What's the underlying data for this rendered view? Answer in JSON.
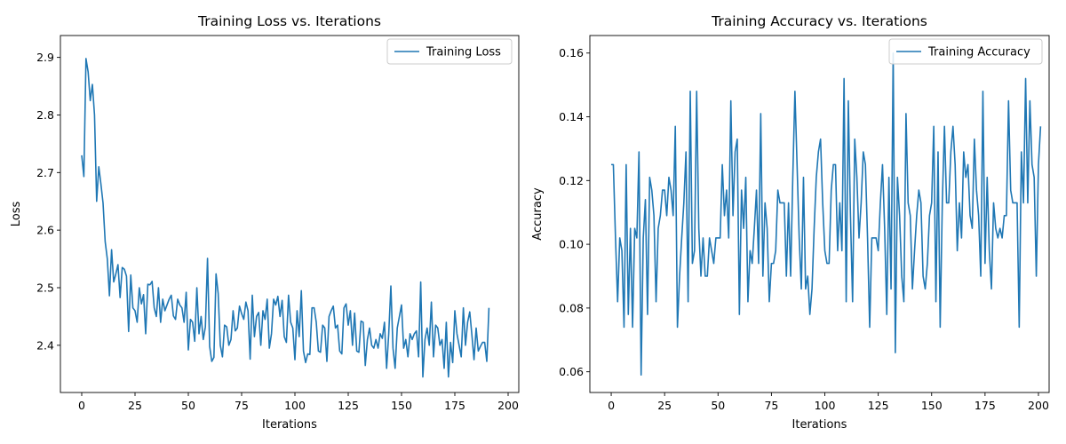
{
  "chart_data": [
    {
      "type": "line",
      "title": "Training Loss vs. Iterations",
      "xlabel": "Iterations",
      "ylabel": "Loss",
      "xlim": [
        -10,
        205
      ],
      "ylim": [
        2.318,
        2.938
      ],
      "xticks": [
        0,
        25,
        50,
        75,
        100,
        125,
        150,
        175,
        200
      ],
      "yticks": [
        2.4,
        2.5,
        2.6,
        2.7,
        2.8,
        2.9
      ],
      "ytick_labels": [
        "2.4",
        "2.5",
        "2.6",
        "2.7",
        "2.8",
        "2.9"
      ],
      "legend": "top-right",
      "grid": false,
      "series": [
        {
          "name": "Training Loss",
          "color": "#1f77b4",
          "x_start": 0,
          "x_step": 1,
          "values": [
            2.73,
            2.693,
            2.898,
            2.875,
            2.825,
            2.853,
            2.8,
            2.65,
            2.71,
            2.68,
            2.647,
            2.58,
            2.55,
            2.486,
            2.566,
            2.51,
            2.524,
            2.54,
            2.483,
            2.535,
            2.532,
            2.52,
            2.424,
            2.522,
            2.465,
            2.46,
            2.44,
            2.5,
            2.472,
            2.488,
            2.42,
            2.506,
            2.505,
            2.511,
            2.465,
            2.45,
            2.5,
            2.44,
            2.48,
            2.46,
            2.47,
            2.48,
            2.487,
            2.451,
            2.445,
            2.48,
            2.47,
            2.465,
            2.44,
            2.492,
            2.392,
            2.445,
            2.44,
            2.407,
            2.5,
            2.42,
            2.45,
            2.41,
            2.432,
            2.551,
            2.398,
            2.372,
            2.379,
            2.524,
            2.49,
            2.4,
            2.38,
            2.435,
            2.432,
            2.4,
            2.41,
            2.46,
            2.425,
            2.43,
            2.468,
            2.455,
            2.445,
            2.475,
            2.46,
            2.376,
            2.487,
            2.415,
            2.45,
            2.457,
            2.4,
            2.46,
            2.445,
            2.48,
            2.395,
            2.42,
            2.48,
            2.47,
            2.485,
            2.45,
            2.478,
            2.415,
            2.405,
            2.487,
            2.44,
            2.43,
            2.375,
            2.46,
            2.415,
            2.495,
            2.39,
            2.37,
            2.385,
            2.384,
            2.465,
            2.465,
            2.44,
            2.39,
            2.388,
            2.435,
            2.43,
            2.372,
            2.45,
            2.46,
            2.468,
            2.43,
            2.435,
            2.39,
            2.385,
            2.465,
            2.472,
            2.435,
            2.46,
            2.4,
            2.456,
            2.39,
            2.388,
            2.442,
            2.44,
            2.365,
            2.41,
            2.43,
            2.4,
            2.395,
            2.41,
            2.395,
            2.42,
            2.412,
            2.44,
            2.36,
            2.42,
            2.503,
            2.395,
            2.36,
            2.43,
            2.45,
            2.47,
            2.395,
            2.41,
            2.38,
            2.42,
            2.41,
            2.42,
            2.425,
            2.38,
            2.51,
            2.345,
            2.41,
            2.43,
            2.4,
            2.475,
            2.38,
            2.435,
            2.43,
            2.4,
            2.41,
            2.36,
            2.44,
            2.345,
            2.405,
            2.37,
            2.46,
            2.42,
            2.4,
            2.38,
            2.465,
            2.4,
            2.44,
            2.458,
            2.418,
            2.375,
            2.43,
            2.39,
            2.398,
            2.405,
            2.405,
            2.372,
            2.465
          ]
        }
      ]
    },
    {
      "type": "line",
      "title": "Training Accuracy vs. Iterations",
      "xlabel": "Iterations",
      "ylabel": "Accuracy",
      "xlim": [
        -10,
        205
      ],
      "ylim": [
        0.0535,
        0.1655
      ],
      "xticks": [
        0,
        25,
        50,
        75,
        100,
        125,
        150,
        175,
        200
      ],
      "yticks": [
        0.06,
        0.08,
        0.1,
        0.12,
        0.14,
        0.16
      ],
      "ytick_labels": [
        "0.06",
        "0.08",
        "0.10",
        "0.12",
        "0.14",
        "0.16"
      ],
      "legend": "top-right",
      "grid": false,
      "series": [
        {
          "name": "Training Accuracy",
          "color": "#1f77b4",
          "x_start": 0,
          "x_step": 1,
          "values": [
            0.125,
            0.125,
            0.102,
            0.082,
            0.102,
            0.098,
            0.074,
            0.125,
            0.078,
            0.105,
            0.074,
            0.105,
            0.102,
            0.129,
            0.059,
            0.102,
            0.114,
            0.078,
            0.121,
            0.117,
            0.109,
            0.082,
            0.105,
            0.109,
            0.117,
            0.117,
            0.109,
            0.121,
            0.117,
            0.109,
            0.137,
            0.074,
            0.09,
            0.102,
            0.113,
            0.129,
            0.082,
            0.148,
            0.094,
            0.098,
            0.148,
            0.105,
            0.09,
            0.102,
            0.09,
            0.09,
            0.102,
            0.098,
            0.094,
            0.102,
            0.102,
            0.102,
            0.125,
            0.109,
            0.117,
            0.102,
            0.145,
            0.109,
            0.129,
            0.133,
            0.078,
            0.117,
            0.105,
            0.121,
            0.082,
            0.098,
            0.094,
            0.105,
            0.117,
            0.094,
            0.141,
            0.09,
            0.113,
            0.105,
            0.082,
            0.094,
            0.094,
            0.098,
            0.117,
            0.113,
            0.113,
            0.113,
            0.09,
            0.113,
            0.09,
            0.121,
            0.148,
            0.125,
            0.102,
            0.086,
            0.121,
            0.086,
            0.09,
            0.078,
            0.086,
            0.105,
            0.121,
            0.129,
            0.133,
            0.113,
            0.098,
            0.094,
            0.094,
            0.117,
            0.125,
            0.125,
            0.098,
            0.113,
            0.098,
            0.152,
            0.082,
            0.145,
            0.109,
            0.082,
            0.133,
            0.121,
            0.102,
            0.113,
            0.129,
            0.125,
            0.102,
            0.074,
            0.102,
            0.102,
            0.102,
            0.098,
            0.113,
            0.125,
            0.105,
            0.078,
            0.121,
            0.086,
            0.16,
            0.066,
            0.121,
            0.109,
            0.09,
            0.082,
            0.141,
            0.113,
            0.109,
            0.086,
            0.098,
            0.109,
            0.117,
            0.113,
            0.09,
            0.086,
            0.094,
            0.109,
            0.113,
            0.137,
            0.082,
            0.129,
            0.074,
            0.113,
            0.137,
            0.113,
            0.113,
            0.129,
            0.137,
            0.125,
            0.098,
            0.113,
            0.102,
            0.129,
            0.121,
            0.125,
            0.109,
            0.105,
            0.133,
            0.117,
            0.109,
            0.09,
            0.148,
            0.094,
            0.121,
            0.098,
            0.086,
            0.113,
            0.105,
            0.102,
            0.105,
            0.102,
            0.109,
            0.109,
            0.145,
            0.117,
            0.113,
            0.113,
            0.113,
            0.074,
            0.129,
            0.113,
            0.152,
            0.113,
            0.145,
            0.125,
            0.121,
            0.09,
            0.125,
            0.137
          ]
        }
      ]
    }
  ]
}
